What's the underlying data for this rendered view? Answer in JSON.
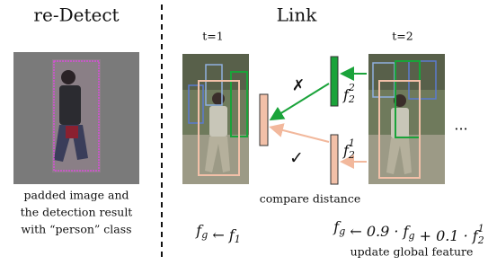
{
  "redetect": {
    "title": "re-Detect",
    "caption": [
      "padded image and",
      "the detection result",
      "with “person” class"
    ]
  },
  "link": {
    "title": "Link",
    "frames": [
      "t=1",
      "t=2"
    ],
    "features": {
      "top": {
        "base": "f",
        "sub": "2",
        "sup": "2"
      },
      "bottom": {
        "base": "f",
        "sub": "2",
        "sup": "1"
      }
    },
    "reject_mark": "✗",
    "accept_mark": "✓",
    "ellipsis": "...",
    "compare_label": "compare distance",
    "init_formula": [
      {
        "text": "f",
        "sub": "g"
      },
      {
        "text": " ← "
      },
      {
        "text": "f",
        "sub": "1"
      }
    ],
    "update_formula": [
      {
        "text": "f",
        "sub": "g"
      },
      {
        "text": " ← 0.9 · "
      },
      {
        "text": "f",
        "sub": "g"
      },
      {
        "text": " + 0.1 · "
      },
      {
        "text": "f",
        "sub": "2",
        "sup": "1"
      }
    ],
    "update_label": "update global feature"
  }
}
